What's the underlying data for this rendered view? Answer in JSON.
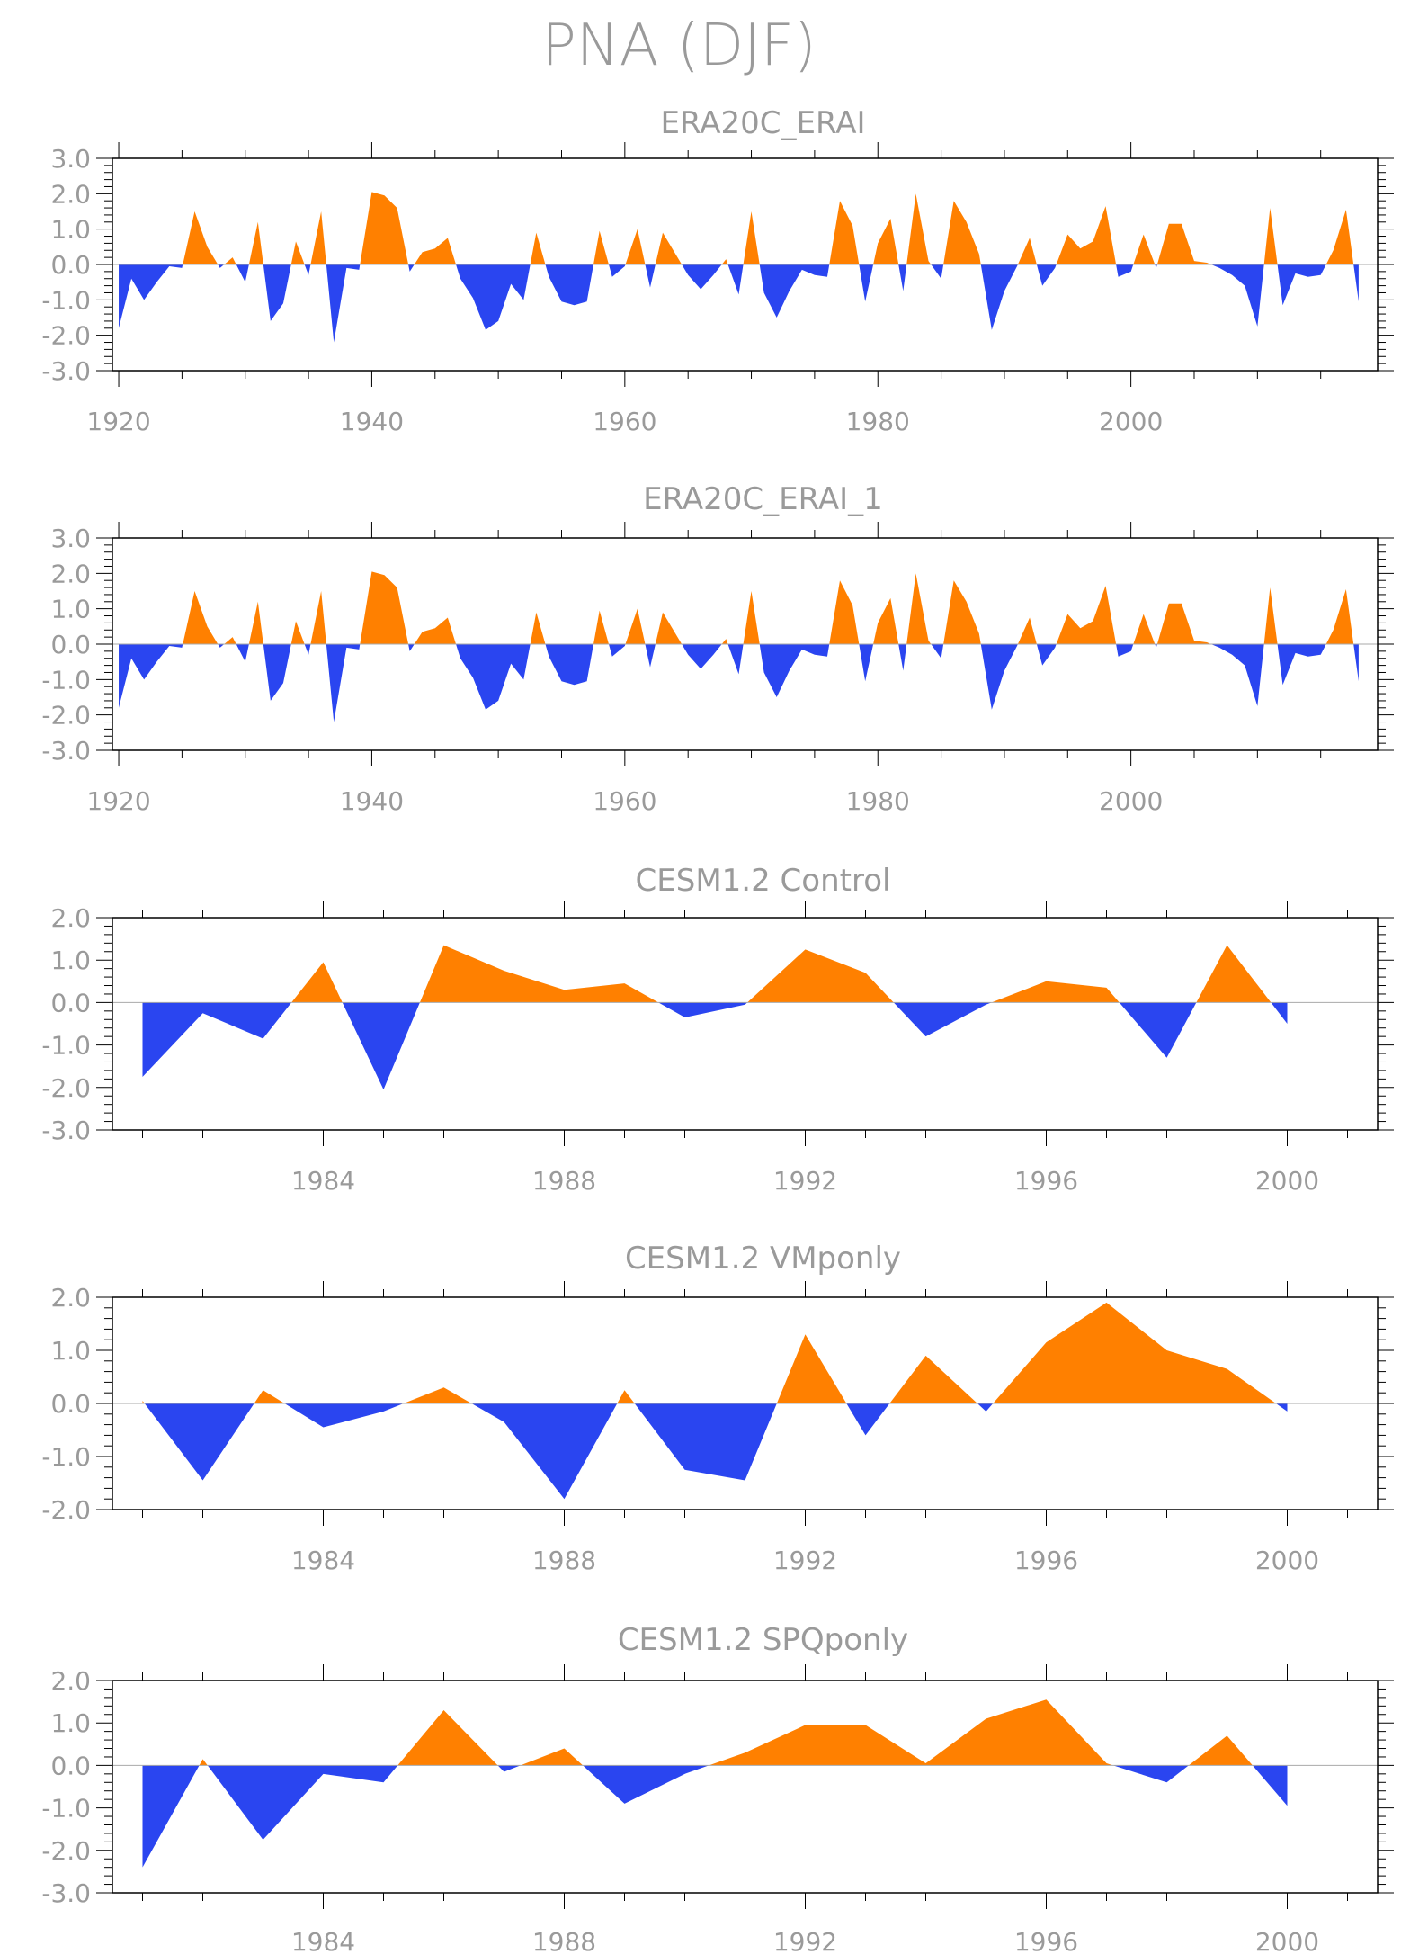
{
  "page_title": "PNA (DJF)",
  "colors": {
    "positive": "#ff8000",
    "negative": "#2a45f0",
    "axis": "#000000",
    "text": "#9a9a9a"
  },
  "chart_data": [
    {
      "type": "area",
      "title": "ERA20C_ERAI",
      "xlabel": "",
      "ylabel": "",
      "xlim": [
        1919.5,
        2019.5
      ],
      "ylim": [
        -3,
        3
      ],
      "grid": false,
      "xticks": [
        1920,
        1940,
        1960,
        1980,
        2000
      ],
      "yticks": [
        -3,
        -2,
        -1,
        0,
        1,
        2,
        3
      ],
      "ytick_labels": [
        "-3.0",
        "-2.0",
        "-1.0",
        "0.0",
        "1.0",
        "2.0",
        "3.0"
      ],
      "x_start": 1920,
      "values": [
        -1.8,
        -0.4,
        -1.0,
        -0.5,
        -0.05,
        -0.1,
        1.5,
        0.5,
        -0.1,
        0.2,
        -0.5,
        1.2,
        -1.6,
        -1.1,
        0.65,
        -0.3,
        1.5,
        -2.2,
        -0.1,
        -0.15,
        2.05,
        1.95,
        1.6,
        -0.2,
        0.35,
        0.45,
        0.75,
        -0.4,
        -0.95,
        -1.85,
        -1.6,
        -0.55,
        -1.0,
        0.9,
        -0.35,
        -1.05,
        -1.15,
        -1.05,
        0.95,
        -0.35,
        -0.05,
        1.0,
        -0.65,
        0.9,
        0.3,
        -0.3,
        -0.7,
        -0.3,
        0.15,
        -0.85,
        1.5,
        -0.8,
        -1.5,
        -0.75,
        -0.15,
        -0.3,
        -0.35,
        1.8,
        1.1,
        -1.05,
        0.6,
        1.3,
        -0.75,
        2.0,
        0.1,
        -0.4,
        1.8,
        1.2,
        0.3,
        -1.85,
        -0.75,
        -0.05,
        0.75,
        -0.6,
        -0.1,
        0.85,
        0.45,
        0.65,
        1.65,
        -0.35,
        -0.2,
        0.85,
        -0.1,
        1.15,
        1.15,
        0.1,
        0.05,
        -0.1,
        -0.3,
        -0.6,
        -1.75,
        1.6,
        -1.15,
        -0.25,
        -0.35,
        -0.3,
        0.4,
        1.55,
        -1.05
      ]
    },
    {
      "type": "area",
      "title": "ERA20C_ERAI_1",
      "xlabel": "",
      "ylabel": "",
      "xlim": [
        1919.5,
        2019.5
      ],
      "ylim": [
        -3,
        3
      ],
      "grid": false,
      "xticks": [
        1920,
        1940,
        1960,
        1980,
        2000
      ],
      "yticks": [
        -3,
        -2,
        -1,
        0,
        1,
        2,
        3
      ],
      "ytick_labels": [
        "-3.0",
        "-2.0",
        "-1.0",
        "0.0",
        "1.0",
        "2.0",
        "3.0"
      ],
      "x_start": 1920,
      "values": [
        -1.8,
        -0.4,
        -1.0,
        -0.5,
        -0.05,
        -0.1,
        1.5,
        0.5,
        -0.1,
        0.2,
        -0.5,
        1.2,
        -1.6,
        -1.1,
        0.65,
        -0.3,
        1.5,
        -2.2,
        -0.1,
        -0.15,
        2.05,
        1.95,
        1.6,
        -0.2,
        0.35,
        0.45,
        0.75,
        -0.4,
        -0.95,
        -1.85,
        -1.6,
        -0.55,
        -1.0,
        0.9,
        -0.35,
        -1.05,
        -1.15,
        -1.05,
        0.95,
        -0.35,
        -0.05,
        1.0,
        -0.65,
        0.9,
        0.3,
        -0.3,
        -0.7,
        -0.3,
        0.15,
        -0.85,
        1.5,
        -0.8,
        -1.5,
        -0.75,
        -0.15,
        -0.3,
        -0.35,
        1.8,
        1.1,
        -1.05,
        0.6,
        1.3,
        -0.75,
        2.0,
        0.1,
        -0.4,
        1.8,
        1.2,
        0.3,
        -1.85,
        -0.75,
        -0.05,
        0.75,
        -0.6,
        -0.1,
        0.85,
        0.45,
        0.65,
        1.65,
        -0.35,
        -0.2,
        0.85,
        -0.1,
        1.15,
        1.15,
        0.1,
        0.05,
        -0.1,
        -0.3,
        -0.6,
        -1.75,
        1.6,
        -1.15,
        -0.25,
        -0.35,
        -0.3,
        0.4,
        1.55,
        -1.05
      ]
    },
    {
      "type": "area",
      "title": "CESM1.2 Control",
      "xlabel": "",
      "ylabel": "",
      "xlim": [
        1980.5,
        2001.5
      ],
      "ylim": [
        -3,
        2
      ],
      "grid": false,
      "xticks": [
        1984,
        1988,
        1992,
        1996,
        2000
      ],
      "yticks": [
        -3,
        -2,
        -1,
        0,
        1,
        2
      ],
      "ytick_labels": [
        "-3.0",
        "-2.0",
        "-1.0",
        "0.0",
        "1.0",
        "2.0"
      ],
      "x_start": 1981,
      "values": [
        -1.75,
        -0.25,
        -0.85,
        0.95,
        -2.05,
        1.35,
        0.75,
        0.3,
        0.45,
        -0.35,
        -0.05,
        1.25,
        0.7,
        -0.8,
        -0.05,
        0.5,
        0.35,
        -1.3,
        1.35,
        -0.5
      ]
    },
    {
      "type": "area",
      "title": "CESM1.2 VMponly",
      "xlabel": "",
      "ylabel": "",
      "xlim": [
        1980.5,
        2001.5
      ],
      "ylim": [
        -2,
        2
      ],
      "grid": false,
      "xticks": [
        1984,
        1988,
        1992,
        1996,
        2000
      ],
      "yticks": [
        -2,
        -1,
        0,
        1,
        2
      ],
      "ytick_labels": [
        "-2.0",
        "-1.0",
        "0.0",
        "1.0",
        "2.0"
      ],
      "x_start": 1981,
      "values": [
        0.05,
        -1.45,
        0.25,
        -0.45,
        -0.15,
        0.3,
        -0.35,
        -1.8,
        0.25,
        -1.25,
        -1.45,
        1.3,
        -0.6,
        0.9,
        -0.15,
        1.15,
        1.9,
        1.0,
        0.65,
        -0.15
      ]
    },
    {
      "type": "area",
      "title": "CESM1.2 SPQponly",
      "xlabel": "",
      "ylabel": "",
      "xlim": [
        1980.5,
        2001.5
      ],
      "ylim": [
        -3,
        2
      ],
      "grid": false,
      "xticks": [
        1984,
        1988,
        1992,
        1996,
        2000
      ],
      "yticks": [
        -3,
        -2,
        -1,
        0,
        1,
        2
      ],
      "ytick_labels": [
        "-3.0",
        "-2.0",
        "-1.0",
        "0.0",
        "1.0",
        "2.0"
      ],
      "x_start": 1981,
      "values": [
        -2.4,
        0.15,
        -1.75,
        -0.2,
        -0.4,
        1.3,
        -0.15,
        0.4,
        -0.9,
        -0.2,
        0.3,
        0.95,
        0.95,
        0.05,
        1.1,
        1.55,
        0.05,
        -0.4,
        0.7,
        -0.95
      ]
    }
  ]
}
